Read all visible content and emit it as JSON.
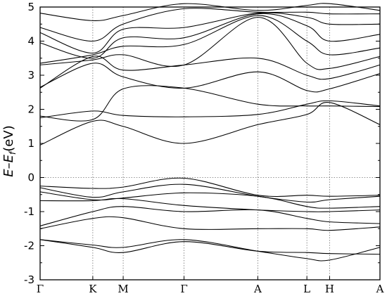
{
  "chart_data": {
    "type": "line",
    "ylabel_main": "E–E",
    "ylabel_sub": "f",
    "ylabel_unit": "(eV)",
    "ylim": [
      -3,
      5
    ],
    "yticks": [
      "-3",
      "-2",
      "-1",
      "0",
      "1",
      "2",
      "3",
      "4",
      "5"
    ],
    "kpoints": [
      {
        "label": "Γ",
        "x": 0.0
      },
      {
        "label": "K",
        "x": 1.0
      },
      {
        "label": "M",
        "x": 1.577
      },
      {
        "label": "Γ",
        "x": 2.732
      },
      {
        "label": "A",
        "x": 4.132
      },
      {
        "label": "L",
        "x": 5.064
      },
      {
        "label": "H",
        "x": 5.495
      },
      {
        "label": "A",
        "x": 6.451
      }
    ],
    "xlim": [
      0,
      6.451
    ],
    "fermi_level": 0,
    "grid": "dotted vertical lines at high-symmetry points and at E = 0",
    "series": [
      {
        "x": [
          0,
          1.0,
          1.577,
          2.732,
          4.132,
          5.064,
          5.495,
          6.451
        ],
        "values": [
          -1.82,
          -2.05,
          -2.2,
          -1.88,
          -2.16,
          -2.2,
          -2.23,
          -2.25
        ]
      },
      {
        "x": [
          0,
          1.0,
          1.577,
          2.732,
          4.132,
          5.064,
          5.495,
          6.451
        ],
        "values": [
          -1.82,
          -1.98,
          -2.05,
          -1.82,
          -2.16,
          -2.38,
          -2.42,
          -2.05
        ]
      },
      {
        "x": [
          0,
          1.0,
          1.577,
          2.732,
          4.132,
          5.064,
          5.495,
          6.451
        ],
        "values": [
          -1.5,
          -1.2,
          -1.18,
          -1.5,
          -1.5,
          -1.5,
          -1.55,
          -1.45
        ]
      },
      {
        "x": [
          0,
          1.0,
          1.577,
          2.732,
          4.132,
          5.064,
          5.495,
          6.451
        ],
        "values": [
          -1.42,
          -1.0,
          -0.85,
          -1.0,
          -0.95,
          -1.2,
          -1.3,
          -1.35
        ]
      },
      {
        "x": [
          0,
          1.0,
          1.577,
          2.732,
          4.132,
          5.064,
          5.495,
          6.451
        ],
        "values": [
          -0.68,
          -0.68,
          -0.62,
          -0.82,
          -0.95,
          -1.0,
          -1.0,
          -0.95
        ]
      },
      {
        "x": [
          0,
          1.0,
          1.577,
          2.732,
          4.132,
          5.064,
          5.495,
          6.451
        ],
        "values": [
          -0.42,
          -0.65,
          -0.6,
          -0.45,
          -0.55,
          -0.85,
          -0.9,
          -0.85
        ]
      },
      {
        "x": [
          0,
          1.0,
          1.577,
          2.732,
          4.132,
          5.064,
          5.495,
          6.451
        ],
        "values": [
          -0.3,
          -0.58,
          -0.42,
          -0.2,
          -0.55,
          -0.72,
          -0.65,
          -0.55
        ]
      },
      {
        "x": [
          0,
          1.0,
          1.577,
          2.732,
          4.132,
          5.064,
          5.495,
          6.451
        ],
        "values": [
          -0.25,
          -0.32,
          -0.28,
          -0.02,
          -0.52,
          -0.52,
          -0.55,
          -0.52
        ]
      },
      {
        "x": [
          0,
          1.0,
          1.577,
          2.732,
          4.132,
          5.064,
          5.495,
          6.451
        ],
        "values": [
          0.95,
          1.65,
          1.5,
          1.0,
          1.55,
          1.85,
          2.2,
          1.55
        ]
      },
      {
        "x": [
          0,
          1.0,
          1.577,
          2.732,
          4.132,
          5.064,
          5.495,
          6.451
        ],
        "values": [
          1.75,
          1.95,
          1.82,
          1.78,
          1.85,
          2.15,
          2.25,
          2.1
        ]
      },
      {
        "x": [
          0,
          1.0,
          1.577,
          2.732,
          4.132,
          5.064,
          5.495,
          6.451
        ],
        "values": [
          1.8,
          1.7,
          2.6,
          2.62,
          2.15,
          2.1,
          2.1,
          2.08
        ]
      },
      {
        "x": [
          0,
          1.0,
          1.577,
          2.732,
          4.132,
          5.064,
          5.495,
          6.451
        ],
        "values": [
          2.65,
          3.35,
          2.95,
          2.62,
          3.1,
          2.55,
          2.6,
          3.05
        ]
      },
      {
        "x": [
          0,
          1.0,
          1.577,
          2.732,
          4.132,
          5.064,
          5.495,
          6.451
        ],
        "values": [
          2.62,
          3.55,
          3.15,
          3.3,
          3.5,
          3.0,
          2.9,
          3.3
        ]
      },
      {
        "x": [
          0,
          1.0,
          1.577,
          2.732,
          4.132,
          5.064,
          5.495,
          6.451
        ],
        "values": [
          3.3,
          3.45,
          3.6,
          3.3,
          4.7,
          3.35,
          3.2,
          3.55
        ]
      },
      {
        "x": [
          0,
          1.0,
          1.577,
          2.732,
          4.132,
          5.064,
          5.495,
          6.451
        ],
        "values": [
          3.35,
          3.6,
          3.85,
          3.9,
          4.75,
          4.0,
          3.6,
          3.8
        ]
      },
      {
        "x": [
          0,
          1.0,
          1.577,
          2.732,
          4.132,
          5.064,
          5.495,
          6.451
        ],
        "values": [
          3.95,
          3.5,
          4.1,
          4.1,
          4.8,
          4.45,
          4.0,
          4.2
        ]
      },
      {
        "x": [
          0,
          1.0,
          1.577,
          2.732,
          4.132,
          5.064,
          5.495,
          6.451
        ],
        "values": [
          4.25,
          3.65,
          4.35,
          4.4,
          4.82,
          4.7,
          4.5,
          4.5
        ]
      },
      {
        "x": [
          0,
          1.0,
          1.577,
          2.732,
          4.132,
          5.064,
          5.495,
          6.451
        ],
        "values": [
          4.4,
          4.0,
          4.5,
          4.95,
          4.85,
          4.85,
          4.8,
          4.8
        ]
      },
      {
        "x": [
          0,
          1.0,
          1.577,
          2.732,
          4.132,
          5.064,
          5.495,
          6.451
        ],
        "values": [
          4.82,
          4.6,
          4.75,
          5.1,
          4.9,
          5.05,
          5.1,
          4.9
        ]
      }
    ]
  }
}
